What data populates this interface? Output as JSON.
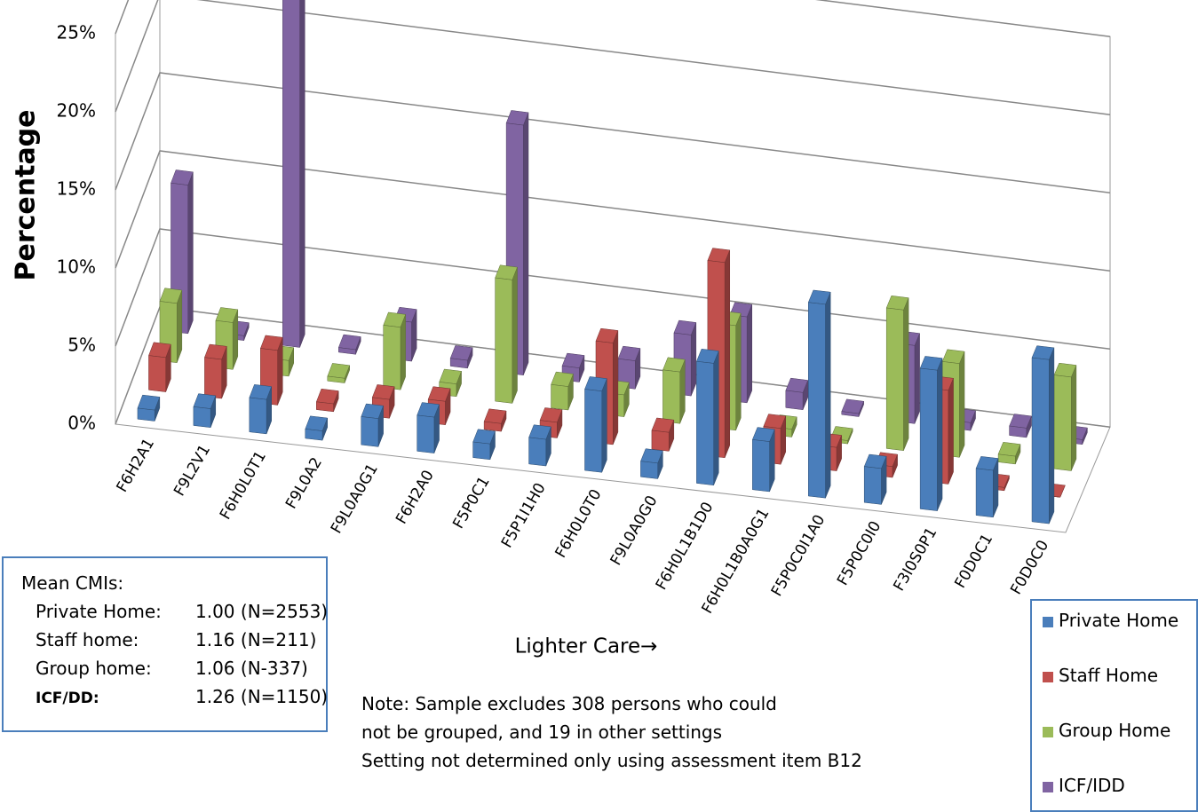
{
  "chart_data": {
    "type": "bar3d",
    "y_label": "Percentage",
    "x_label": "Lighter Care→",
    "categories": [
      "F6H2A1",
      "F9L2V1",
      "F6H0L0T1",
      "F9L0A2",
      "F9L0A0G1",
      "F6H2A0",
      "F5P0C1",
      "F5P1I1H0",
      "F6H0L0T0",
      "F9L0A0G0",
      "F6H0L1B1D0",
      "F6H0L1B0A0G1",
      "F5P0C0I1A0",
      "F5P0C0I0",
      "F3I0S0P1",
      "F0D0C1",
      "F0D0C0"
    ],
    "series": [
      {
        "name": "Private Home",
        "color": "#4a7ebb",
        "values": [
          0.7,
          1.2,
          2.2,
          0.6,
          1.8,
          2.3,
          1.0,
          1.7,
          5.2,
          1.0,
          7.8,
          3.2,
          12.4,
          2.3,
          9.0,
          3.0,
          10.5
        ]
      },
      {
        "name": "Staff Home",
        "color": "#c0504d",
        "values": [
          2.2,
          2.5,
          3.5,
          0.5,
          1.2,
          1.5,
          0.5,
          1.0,
          6.5,
          1.2,
          12.5,
          2.3,
          1.5,
          0.7,
          6.0,
          0.2,
          0.0
        ]
      },
      {
        "name": "Group Home",
        "color": "#9bbb59",
        "values": [
          3.8,
          3.0,
          1.0,
          0.3,
          4.0,
          0.8,
          7.9,
          1.5,
          1.4,
          3.3,
          6.7,
          0.5,
          0.2,
          9.0,
          6.0,
          0.5,
          6.0
        ]
      },
      {
        "name": "ICF/IDD",
        "color": "#8064a2",
        "values": [
          9.5,
          0.3,
          24.8,
          0.3,
          2.5,
          0.5,
          16.0,
          0.9,
          1.8,
          3.9,
          5.5,
          1.1,
          0.2,
          5.0,
          0.5,
          0.6,
          0.3
        ]
      }
    ],
    "ylim": [
      0,
      25
    ],
    "yticks": [
      {
        "value": 0,
        "label": "0%"
      },
      {
        "value": 5,
        "label": "5%"
      },
      {
        "value": 10,
        "label": "10%"
      },
      {
        "value": 15,
        "label": "15%"
      },
      {
        "value": 20,
        "label": "20%"
      },
      {
        "value": 25,
        "label": "25%"
      }
    ],
    "grid": true,
    "cmi_box": {
      "title": "Mean CMIs:",
      "rows": [
        {
          "label": "Private Home:",
          "value": "1.00 (N=2553)"
        },
        {
          "label": "Staff home:",
          "value": "1.16 (N=211)"
        },
        {
          "label": "Group home:",
          "value": "1.06 (N-337)"
        },
        {
          "label": "ICF/DD:",
          "value": "1.26 (N=1150)"
        }
      ]
    },
    "notes": [
      "Note: Sample excludes 308 persons  who could",
      "not be grouped, and 19 in other settings",
      "Setting not determined only using  assessment item B12"
    ]
  }
}
